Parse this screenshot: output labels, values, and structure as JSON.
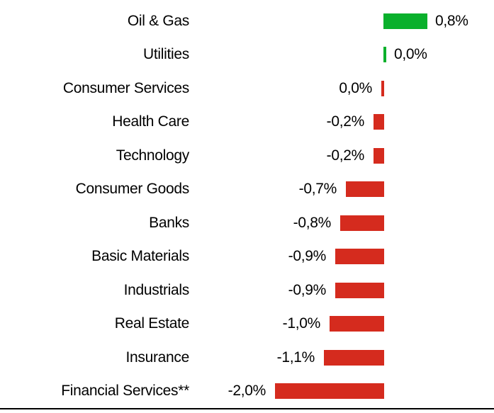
{
  "chart_data": {
    "type": "bar",
    "orientation": "horizontal",
    "title": "",
    "xlabel": "",
    "ylabel": "",
    "unit": "%",
    "decimal_style": "comma",
    "grid": false,
    "legend": null,
    "background_color": "#FFFFFF",
    "positive_color": "#0AB02C",
    "negative_color": "#D52B1E",
    "baseline_color": "#000000",
    "xlim": [
      -2.2,
      1.0
    ],
    "categories": [
      "Oil & Gas",
      "Utilities",
      "Consumer Services",
      "Health Care",
      "Technology",
      "Consumer Goods",
      "Banks",
      "Basic Materials",
      "Industrials",
      "Real Estate",
      "Insurance",
      "Financial Services**"
    ],
    "values": [
      0.8,
      0.0,
      0.0,
      -0.2,
      -0.2,
      -0.7,
      -0.8,
      -0.9,
      -0.9,
      -1.0,
      -1.1,
      -2.0
    ],
    "rows": [
      {
        "category": "Oil & Gas",
        "value": 0.8,
        "value_label": "0,8%",
        "color": "green",
        "side": "right"
      },
      {
        "category": "Utilities",
        "value": 0.0,
        "value_label": "0,0%",
        "color": "green",
        "side": "right"
      },
      {
        "category": "Consumer Services",
        "value": 0.0,
        "value_label": "0,0%",
        "color": "red",
        "side": "left"
      },
      {
        "category": "Health Care",
        "value": -0.2,
        "value_label": "-0,2%",
        "color": "red",
        "side": "left"
      },
      {
        "category": "Technology",
        "value": -0.2,
        "value_label": "-0,2%",
        "color": "red",
        "side": "left"
      },
      {
        "category": "Consumer Goods",
        "value": -0.7,
        "value_label": "-0,7%",
        "color": "red",
        "side": "left"
      },
      {
        "category": "Banks",
        "value": -0.8,
        "value_label": "-0,8%",
        "color": "red",
        "side": "left"
      },
      {
        "category": "Basic Materials",
        "value": -0.9,
        "value_label": "-0,9%",
        "color": "red",
        "side": "left"
      },
      {
        "category": "Industrials",
        "value": -0.9,
        "value_label": "-0,9%",
        "color": "red",
        "side": "left"
      },
      {
        "category": "Real Estate",
        "value": -1.0,
        "value_label": "-1,0%",
        "color": "red",
        "side": "left"
      },
      {
        "category": "Insurance",
        "value": -1.1,
        "value_label": "-1,1%",
        "color": "red",
        "side": "left"
      },
      {
        "category": "Financial Services**",
        "value": -2.0,
        "value_label": "-2,0%",
        "color": "red",
        "side": "left"
      }
    ]
  }
}
